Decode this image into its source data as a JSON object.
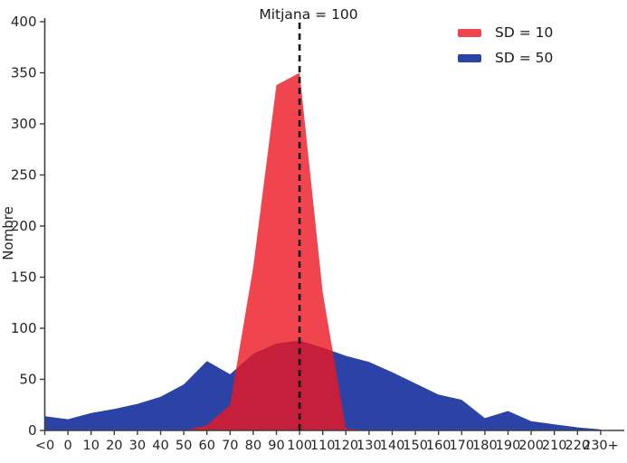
{
  "figure": {
    "background": "#ffffff",
    "text_color": "#262626",
    "axis_color": "#3f3f3f"
  },
  "chart_data": {
    "type": "area",
    "title": "",
    "xlabel": "",
    "ylabel": "Nombre",
    "categories": [
      "<0",
      "0",
      "10",
      "20",
      "30",
      "40",
      "50",
      "60",
      "70",
      "80",
      "90",
      "100",
      "110",
      "120",
      "130",
      "140",
      "150",
      "160",
      "170",
      "180",
      "190",
      "200",
      "210",
      "220",
      "230+"
    ],
    "series": [
      {
        "name": "SD = 10",
        "color": "#ec1722",
        "opacity": 0.8,
        "values": [
          0,
          0,
          0,
          0,
          0,
          0,
          0,
          5,
          25,
          160,
          338,
          350,
          135,
          2,
          0,
          0,
          0,
          0,
          0,
          0,
          0,
          0,
          0,
          0,
          0
        ]
      },
      {
        "name": "SD = 50",
        "color": "#2b43a7",
        "opacity": 1,
        "values": [
          14,
          11,
          17,
          21,
          26,
          33,
          45,
          68,
          55,
          75,
          85,
          88,
          81,
          73,
          67,
          57,
          46,
          35,
          30,
          12,
          19,
          9,
          6,
          3,
          1
        ]
      }
    ],
    "ylim": [
      0,
      400
    ],
    "yticks": [
      0,
      50,
      100,
      150,
      200,
      250,
      300,
      350,
      400
    ],
    "grid": false,
    "legend_position": "upper right",
    "mean_line": {
      "x_category": "100",
      "label": "Mitjana = 100",
      "style": "dashed",
      "color": "#111111"
    }
  }
}
